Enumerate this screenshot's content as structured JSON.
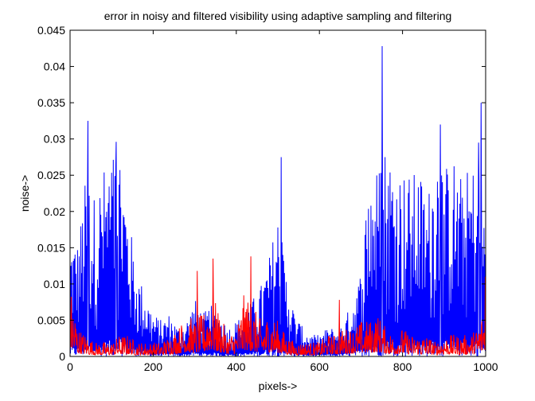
{
  "chart_data": {
    "type": "line",
    "title": "error in noisy and filtered visibility using adaptive sampling and filtering",
    "xlabel": "pixels->",
    "ylabel": "noise->",
    "xlim": [
      0,
      1000
    ],
    "ylim": [
      0,
      0.045
    ],
    "xticks": [
      0,
      200,
      400,
      600,
      800,
      1000
    ],
    "xtick_labels": [
      "0",
      "200",
      "400",
      "600",
      "800",
      "1000"
    ],
    "yticks": [
      0,
      0.005,
      0.01,
      0.015,
      0.02,
      0.025,
      0.03,
      0.035,
      0.04,
      0.045
    ],
    "ytick_labels": [
      "0",
      "0.005",
      "0.01",
      "0.015",
      "0.02",
      "0.025",
      "0.03",
      "0.035",
      "0.04",
      "0.045"
    ],
    "grid": false,
    "legend": "none",
    "series": [
      {
        "color": "#0000ff",
        "envelope_x": [
          0,
          20,
          40,
          60,
          80,
          100,
          120,
          140,
          160,
          180,
          200,
          220,
          240,
          260,
          280,
          300,
          320,
          340,
          360,
          380,
          400,
          420,
          440,
          460,
          480,
          500,
          520,
          540,
          560,
          580,
          600,
          620,
          640,
          660,
          680,
          700,
          720,
          740,
          760,
          780,
          800,
          820,
          840,
          860,
          880,
          900,
          920,
          940,
          960,
          980,
          1000
        ],
        "envelope_peak": [
          0.017,
          0.016,
          0.026,
          0.022,
          0.026,
          0.028,
          0.03,
          0.02,
          0.012,
          0.009,
          0.006,
          0.005,
          0.006,
          0.004,
          0.005,
          0.008,
          0.006,
          0.007,
          0.006,
          0.004,
          0.005,
          0.006,
          0.008,
          0.01,
          0.014,
          0.02,
          0.012,
          0.006,
          0.004,
          0.003,
          0.003,
          0.004,
          0.004,
          0.005,
          0.008,
          0.012,
          0.027,
          0.026,
          0.03,
          0.027,
          0.026,
          0.025,
          0.026,
          0.022,
          0.03,
          0.026,
          0.028,
          0.025,
          0.026,
          0.027,
          0.02
        ],
        "spikes": [
          {
            "x": 43,
            "y": 0.0325
          },
          {
            "x": 111,
            "y": 0.0296
          },
          {
            "x": 508,
            "y": 0.0275
          },
          {
            "x": 751,
            "y": 0.0428
          },
          {
            "x": 891,
            "y": 0.032
          },
          {
            "x": 989,
            "y": 0.035
          },
          {
            "x": 983,
            "y": 0.0295
          }
        ]
      },
      {
        "color": "#ff0000",
        "envelope_x": [
          0,
          20,
          40,
          60,
          80,
          100,
          120,
          140,
          160,
          180,
          200,
          220,
          240,
          260,
          280,
          300,
          320,
          340,
          360,
          380,
          400,
          420,
          440,
          460,
          480,
          500,
          520,
          540,
          560,
          580,
          600,
          620,
          640,
          660,
          680,
          700,
          720,
          740,
          760,
          780,
          800,
          820,
          840,
          860,
          880,
          900,
          920,
          940,
          960,
          980,
          1000
        ],
        "envelope_peak": [
          0.01,
          0.004,
          0.003,
          0.002,
          0.002,
          0.002,
          0.003,
          0.003,
          0.002,
          0.002,
          0.002,
          0.002,
          0.003,
          0.004,
          0.006,
          0.005,
          0.006,
          0.009,
          0.006,
          0.003,
          0.004,
          0.009,
          0.007,
          0.005,
          0.006,
          0.005,
          0.003,
          0.002,
          0.002,
          0.002,
          0.002,
          0.003,
          0.003,
          0.004,
          0.004,
          0.005,
          0.005,
          0.006,
          0.004,
          0.003,
          0.004,
          0.003,
          0.003,
          0.003,
          0.002,
          0.003,
          0.003,
          0.003,
          0.003,
          0.004,
          0.008
        ],
        "spikes": [
          {
            "x": 306,
            "y": 0.0118
          },
          {
            "x": 344,
            "y": 0.0135
          },
          {
            "x": 435,
            "y": 0.0138
          },
          {
            "x": 648,
            "y": 0.0078
          },
          {
            "x": 999,
            "y": 0.011
          }
        ]
      }
    ]
  }
}
